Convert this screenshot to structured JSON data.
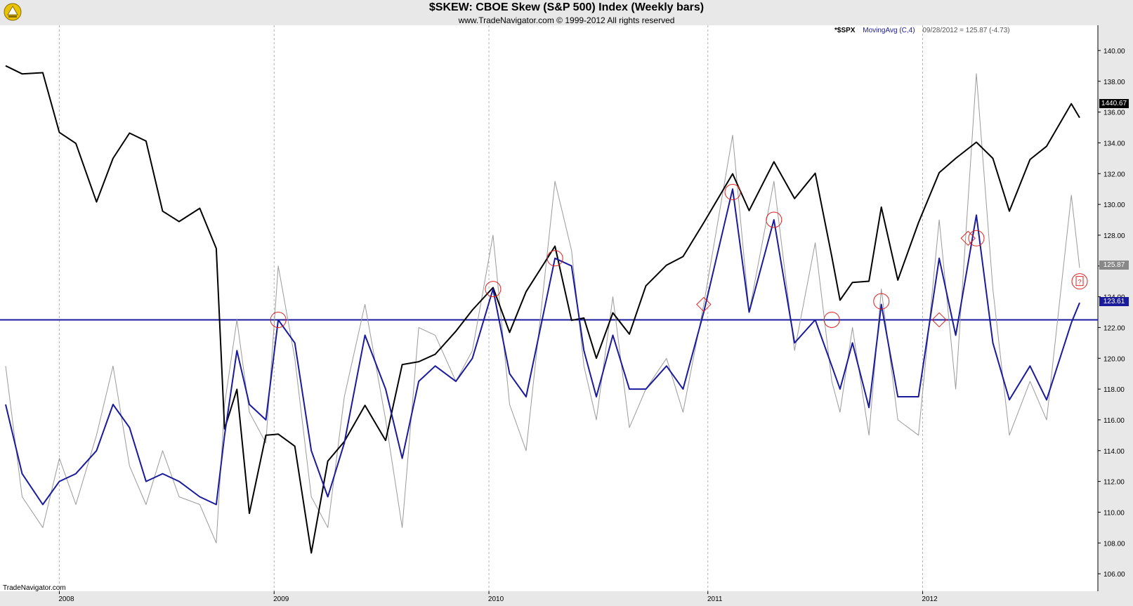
{
  "header": {
    "title": "$SKEW:  CBOE Skew (S&P 500) Index  (Weekly bars)",
    "copyright": "www.TradeNavigator.com © 1999-2012 All rights reserved"
  },
  "legend": {
    "spx_label": "*$SPX",
    "ma_label": "MovingAvg (C,4)",
    "price_note": "09/28/2012 = 125.87 (-4.73)"
  },
  "watermark": "TradeNavigator.com",
  "value_tags": {
    "spx": "1440.67",
    "skew": "125.87",
    "ma": "123.61"
  },
  "colors": {
    "spx_line": "#000000",
    "skew_line": "#9a9a9a",
    "ma_line": "#1a1a9c",
    "horizontal_line": "#1a1a9c",
    "markers": "#dd2222",
    "panel_bg": "#e8e8e8"
  },
  "chart_data": {
    "type": "line",
    "title": "$SKEW:  CBOE Skew (S&P 500) Index  (Weekly bars)",
    "x_range": [
      "2007-10-05",
      "2012-09-28"
    ],
    "x_ticks": [
      {
        "date": "2008-01-04",
        "label": "2008"
      },
      {
        "date": "2009-01-02",
        "label": "2009"
      },
      {
        "date": "2010-01-01",
        "label": "2010"
      },
      {
        "date": "2011-01-07",
        "label": "2011"
      },
      {
        "date": "2012-01-06",
        "label": "2012"
      }
    ],
    "y_axis_side": "right",
    "ylim": [
      105,
      141
    ],
    "y_ticks": [
      106,
      108,
      110,
      112,
      114,
      116,
      118,
      120,
      122,
      124,
      126,
      128,
      130,
      132,
      134,
      136,
      138,
      140
    ],
    "y_tick_labels": [
      "106.00",
      "108.00",
      "110.00",
      "112.00",
      "114.00",
      "116.00",
      "118.00",
      "120.00",
      "122.00",
      "124.00",
      "126.00",
      "128.00",
      "130.00",
      "132.00",
      "134.00",
      "136.00",
      "138.00",
      "140.00"
    ],
    "grid": "vertical dashed at year boundaries",
    "horizontal_line_value": 122.5,
    "series": [
      {
        "name": "*$SPX",
        "axis": "hidden (overlay)",
        "x": [
          "2007-10-05",
          "2007-11-02",
          "2007-12-07",
          "2008-01-04",
          "2008-02-01",
          "2008-03-07",
          "2008-04-04",
          "2008-05-02",
          "2008-05-30",
          "2008-06-27",
          "2008-07-25",
          "2008-08-29",
          "2008-09-26",
          "2008-10-10",
          "2008-10-31",
          "2008-11-21",
          "2008-12-19",
          "2009-01-09",
          "2009-02-06",
          "2009-03-06",
          "2009-04-03",
          "2009-05-01",
          "2009-06-05",
          "2009-07-10",
          "2009-08-07",
          "2009-09-04",
          "2009-10-02",
          "2009-11-06",
          "2009-12-04",
          "2010-01-08",
          "2010-02-05",
          "2010-03-05",
          "2010-04-23",
          "2010-05-21",
          "2010-06-11",
          "2010-07-02",
          "2010-07-30",
          "2010-08-27",
          "2010-09-24",
          "2010-10-29",
          "2010-11-26",
          "2010-12-31",
          "2011-02-18",
          "2011-03-18",
          "2011-04-29",
          "2011-06-03",
          "2011-07-08",
          "2011-08-05",
          "2011-08-19",
          "2011-09-09",
          "2011-10-07",
          "2011-10-28",
          "2011-11-25",
          "2011-12-30",
          "2012-02-03",
          "2012-03-02",
          "2012-04-06",
          "2012-05-04",
          "2012-06-01",
          "2012-07-06",
          "2012-08-03",
          "2012-09-14",
          "2012-09-28"
        ],
        "values": [
          1531,
          1517,
          1519,
          1415,
          1396,
          1294,
          1370,
          1414,
          1400,
          1278,
          1260,
          1283,
          1213,
          899,
          968,
          752,
          888,
          890,
          869,
          683,
          843,
          877,
          940,
          879,
          1011,
          1016,
          1029,
          1069,
          1106,
          1145,
          1067,
          1138,
          1217,
          1088,
          1092,
          1022,
          1101,
          1064,
          1148,
          1184,
          1199,
          1258,
          1343,
          1279,
          1364,
          1300,
          1344,
          1199,
          1123,
          1154,
          1156,
          1285,
          1158,
          1258,
          1345,
          1370,
          1398,
          1370,
          1278,
          1368,
          1391,
          1465,
          1440.67
        ]
      },
      {
        "name": "$SKEW",
        "x": [
          "2007-10-05",
          "2007-11-02",
          "2007-12-07",
          "2008-01-04",
          "2008-02-01",
          "2008-03-07",
          "2008-04-04",
          "2008-05-02",
          "2008-05-30",
          "2008-06-27",
          "2008-07-25",
          "2008-08-29",
          "2008-09-26",
          "2008-10-10",
          "2008-10-31",
          "2008-11-21",
          "2008-12-19",
          "2009-01-09",
          "2009-02-06",
          "2009-03-06",
          "2009-04-03",
          "2009-05-01",
          "2009-06-05",
          "2009-07-10",
          "2009-08-07",
          "2009-09-04",
          "2009-10-02",
          "2009-11-06",
          "2009-12-04",
          "2010-01-08",
          "2010-02-05",
          "2010-03-05",
          "2010-04-23",
          "2010-05-21",
          "2010-06-11",
          "2010-07-02",
          "2010-07-30",
          "2010-08-27",
          "2010-09-24",
          "2010-10-29",
          "2010-11-26",
          "2010-12-31",
          "2011-02-18",
          "2011-03-18",
          "2011-04-29",
          "2011-06-03",
          "2011-07-08",
          "2011-08-05",
          "2011-08-19",
          "2011-09-09",
          "2011-10-07",
          "2011-10-28",
          "2011-11-25",
          "2011-12-30",
          "2012-02-03",
          "2012-03-02",
          "2012-04-06",
          "2012-05-04",
          "2012-06-01",
          "2012-07-06",
          "2012-08-03",
          "2012-09-14",
          "2012-09-28"
        ],
        "values": [
          119.5,
          111.0,
          109.0,
          113.5,
          110.5,
          115.0,
          119.5,
          113.0,
          110.5,
          114.0,
          111.0,
          110.5,
          108.0,
          117.0,
          122.5,
          116.5,
          114.5,
          126.0,
          120.0,
          111.0,
          109.0,
          117.5,
          123.5,
          116.0,
          109.0,
          122.0,
          121.5,
          118.5,
          120.5,
          128.0,
          117.0,
          114.0,
          131.5,
          127.0,
          119.5,
          116.0,
          124.0,
          115.5,
          118.0,
          120.0,
          116.5,
          123.5,
          134.5,
          123.0,
          131.5,
          120.5,
          127.5,
          118.5,
          116.5,
          122.0,
          115.0,
          124.5,
          116.0,
          115.0,
          129.0,
          118.0,
          138.5,
          124.5,
          115.0,
          118.5,
          116.0,
          130.6,
          125.87
        ]
      },
      {
        "name": "MovingAvg (C,4)",
        "x": [
          "2007-10-05",
          "2007-11-02",
          "2007-12-07",
          "2008-01-04",
          "2008-02-01",
          "2008-03-07",
          "2008-04-04",
          "2008-05-02",
          "2008-05-30",
          "2008-06-27",
          "2008-07-25",
          "2008-08-29",
          "2008-09-26",
          "2008-10-10",
          "2008-10-31",
          "2008-11-21",
          "2008-12-19",
          "2009-01-09",
          "2009-02-06",
          "2009-03-06",
          "2009-04-03",
          "2009-05-01",
          "2009-06-05",
          "2009-07-10",
          "2009-08-07",
          "2009-09-04",
          "2009-10-02",
          "2009-11-06",
          "2009-12-04",
          "2010-01-08",
          "2010-02-05",
          "2010-03-05",
          "2010-04-23",
          "2010-05-21",
          "2010-06-11",
          "2010-07-02",
          "2010-07-30",
          "2010-08-27",
          "2010-09-24",
          "2010-10-29",
          "2010-11-26",
          "2010-12-31",
          "2011-02-18",
          "2011-03-18",
          "2011-04-29",
          "2011-06-03",
          "2011-07-08",
          "2011-08-05",
          "2011-08-19",
          "2011-09-09",
          "2011-10-07",
          "2011-10-28",
          "2011-11-25",
          "2011-12-30",
          "2012-02-03",
          "2012-03-02",
          "2012-04-06",
          "2012-05-04",
          "2012-06-01",
          "2012-07-06",
          "2012-08-03",
          "2012-09-14",
          "2012-09-28"
        ],
        "values": [
          117.0,
          112.5,
          110.5,
          112.0,
          112.5,
          114.0,
          117.0,
          115.5,
          112.0,
          112.5,
          112.0,
          111.0,
          110.5,
          115.0,
          120.5,
          117.0,
          116.0,
          122.5,
          121.0,
          114.0,
          111.0,
          114.5,
          121.5,
          118.0,
          113.5,
          118.5,
          119.5,
          118.5,
          120.0,
          124.5,
          119.0,
          117.5,
          126.5,
          126.0,
          120.5,
          117.5,
          121.5,
          118.0,
          118.0,
          119.5,
          118.0,
          123.0,
          131.0,
          123.0,
          129.0,
          121.0,
          122.5,
          119.5,
          118.0,
          121.0,
          116.8,
          123.5,
          117.5,
          117.5,
          126.5,
          121.5,
          129.3,
          121.0,
          117.3,
          119.5,
          117.3,
          122.3,
          123.61
        ]
      }
    ],
    "markers": [
      {
        "shape": "circle",
        "date": "2009-01-09",
        "value": 122.5
      },
      {
        "shape": "circle",
        "date": "2010-01-08",
        "value": 124.5
      },
      {
        "shape": "circle",
        "date": "2010-04-23",
        "value": 126.5
      },
      {
        "shape": "diamond",
        "date": "2010-12-31",
        "value": 123.5
      },
      {
        "shape": "circle",
        "date": "2011-02-18",
        "value": 130.8
      },
      {
        "shape": "circle",
        "date": "2011-04-29",
        "value": 129.0
      },
      {
        "shape": "circle",
        "date": "2011-08-05",
        "value": 122.5
      },
      {
        "shape": "circle",
        "date": "2011-10-28",
        "value": 123.7
      },
      {
        "shape": "diamond",
        "date": "2012-02-03",
        "value": 122.5
      },
      {
        "shape": "diamond",
        "date": "2012-03-23",
        "value": 127.8
      },
      {
        "shape": "circle",
        "date": "2012-04-06",
        "value": 127.8
      },
      {
        "shape": "circle-question",
        "date": "2012-09-28",
        "value": 125.0
      }
    ]
  }
}
